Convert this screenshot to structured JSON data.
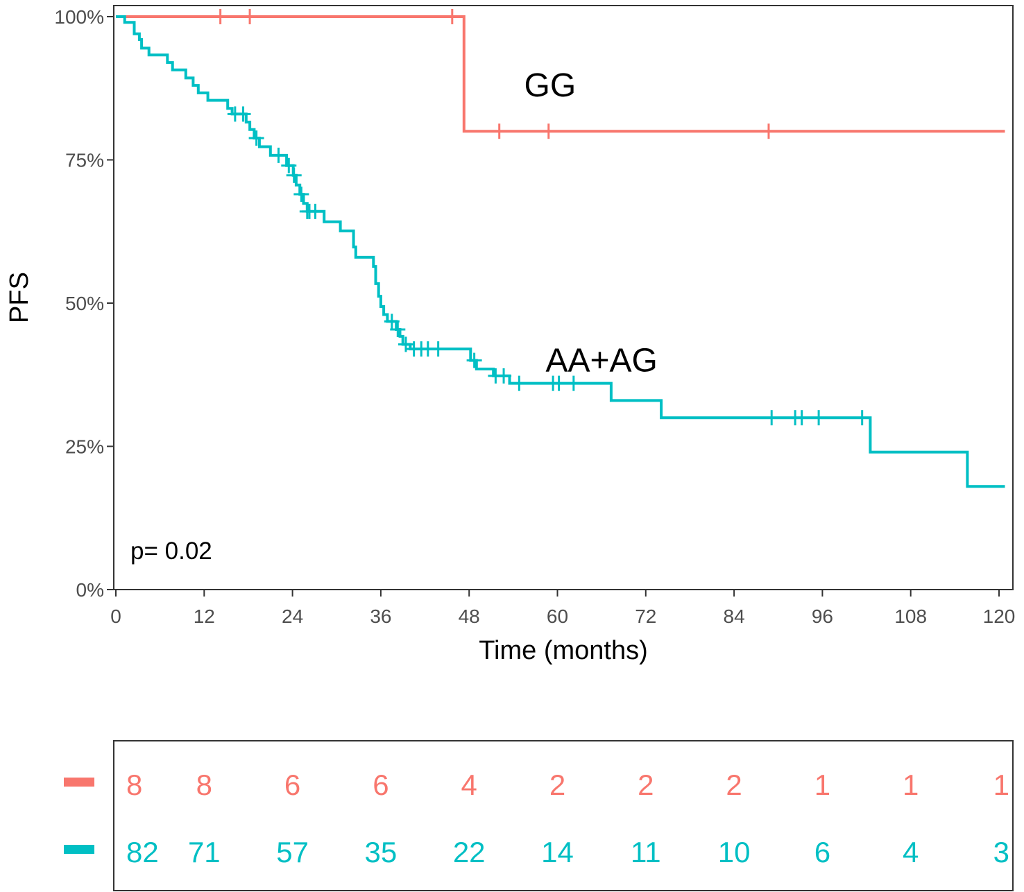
{
  "chart_data": {
    "type": "line",
    "subtype": "kaplan-meier",
    "title": "",
    "xlabel": "Time (months)",
    "ylabel": "PFS",
    "xlim": [
      0,
      120
    ],
    "ylim": [
      0,
      100
    ],
    "x_ticks": [
      0,
      12,
      24,
      36,
      48,
      60,
      72,
      84,
      96,
      108,
      120
    ],
    "y_ticks": [
      {
        "value": 0,
        "label": "0%"
      },
      {
        "value": 25,
        "label": "25%"
      },
      {
        "value": 50,
        "label": "50%"
      },
      {
        "value": 75,
        "label": "75%"
      },
      {
        "value": 100,
        "label": "100%"
      }
    ],
    "grid": false,
    "annotation": "p= 0.02",
    "series": [
      {
        "name": "GG",
        "color": "#F8766D",
        "label_at": {
          "x": 59,
          "y": 88
        },
        "steps": [
          [
            0,
            100
          ],
          [
            47.3,
            100
          ],
          [
            47.3,
            80
          ],
          [
            121,
            80
          ]
        ],
        "censor_times": [
          14.2,
          18.2,
          45.7,
          52.1,
          58.8,
          88.7
        ],
        "at_risk": [
          8,
          8,
          6,
          6,
          4,
          2,
          2,
          2,
          1,
          1,
          1
        ]
      },
      {
        "name": "AA+AG",
        "color": "#00BFC4",
        "label_at": {
          "x": 66,
          "y": 40
        },
        "steps": [
          [
            0,
            100
          ],
          [
            1.2,
            100
          ],
          [
            1.2,
            99
          ],
          [
            2.5,
            99
          ],
          [
            2.5,
            97
          ],
          [
            3.2,
            97
          ],
          [
            3.2,
            96
          ],
          [
            3.5,
            96
          ],
          [
            3.5,
            94.5
          ],
          [
            4.5,
            94.5
          ],
          [
            4.5,
            93.3
          ],
          [
            7,
            93.3
          ],
          [
            7,
            92
          ],
          [
            7.7,
            92
          ],
          [
            7.7,
            90.7
          ],
          [
            9.5,
            90.7
          ],
          [
            9.5,
            89.3
          ],
          [
            10.5,
            89.3
          ],
          [
            10.5,
            88
          ],
          [
            11.2,
            88
          ],
          [
            11.2,
            86.7
          ],
          [
            12.5,
            86.7
          ],
          [
            12.5,
            85.4
          ],
          [
            15.2,
            85.4
          ],
          [
            15.2,
            84
          ],
          [
            15.8,
            84
          ],
          [
            15.8,
            83
          ],
          [
            17.7,
            83
          ],
          [
            17.7,
            81.6
          ],
          [
            18.2,
            81.6
          ],
          [
            18.2,
            80.3
          ],
          [
            18.8,
            80.3
          ],
          [
            18.8,
            78.8
          ],
          [
            19.5,
            78.8
          ],
          [
            19.5,
            77.3
          ],
          [
            21,
            77.3
          ],
          [
            21,
            75.8
          ],
          [
            23.2,
            75.8
          ],
          [
            23.2,
            74
          ],
          [
            24.1,
            74
          ],
          [
            24.1,
            72.3
          ],
          [
            24.5,
            72.3
          ],
          [
            24.5,
            70.6
          ],
          [
            25,
            70.6
          ],
          [
            25,
            69
          ],
          [
            25.5,
            69
          ],
          [
            25.5,
            67.4
          ],
          [
            26,
            67.4
          ],
          [
            26,
            66
          ],
          [
            28.3,
            66
          ],
          [
            28.3,
            64.2
          ],
          [
            30.5,
            64.2
          ],
          [
            30.5,
            62.6
          ],
          [
            32.3,
            62.6
          ],
          [
            32.3,
            59.8
          ],
          [
            32.6,
            59.8
          ],
          [
            32.6,
            58
          ],
          [
            35,
            58
          ],
          [
            35,
            56.4
          ],
          [
            35.3,
            56.4
          ],
          [
            35.3,
            53.4
          ],
          [
            35.7,
            53.4
          ],
          [
            35.7,
            51.2
          ],
          [
            36,
            51.2
          ],
          [
            36,
            49.4
          ],
          [
            36.4,
            49.4
          ],
          [
            36.4,
            48
          ],
          [
            36.9,
            48
          ],
          [
            36.9,
            46.8
          ],
          [
            38.1,
            46.8
          ],
          [
            38.1,
            45.4
          ],
          [
            38.6,
            45.4
          ],
          [
            38.6,
            44.2
          ],
          [
            39,
            44.2
          ],
          [
            39,
            42.8
          ],
          [
            40,
            42.8
          ],
          [
            40,
            42
          ],
          [
            48.2,
            42
          ],
          [
            48.2,
            40
          ],
          [
            49,
            40
          ],
          [
            49,
            38.5
          ],
          [
            51.3,
            38.5
          ],
          [
            51.3,
            37.3
          ],
          [
            53.5,
            37.3
          ],
          [
            53.5,
            36
          ],
          [
            67.3,
            36
          ],
          [
            67.3,
            33
          ],
          [
            74.1,
            33
          ],
          [
            74.1,
            30
          ],
          [
            102.5,
            30
          ],
          [
            102.5,
            24
          ],
          [
            115.7,
            24
          ],
          [
            115.7,
            18
          ],
          [
            121,
            18
          ]
        ],
        "censor_times": [
          16.2,
          17.3,
          19.1,
          22.1,
          23.5,
          24.2,
          25.2,
          26,
          26.3,
          27.1,
          37.5,
          38.3,
          39.4,
          40.5,
          41.5,
          42.4,
          43.8,
          48.7,
          51.6,
          52.7,
          54.8,
          59.4,
          60.2,
          62.2,
          89.1,
          92.3,
          93.2,
          95.5,
          101.4
        ],
        "at_risk": [
          82,
          71,
          57,
          35,
          22,
          14,
          11,
          10,
          6,
          4,
          3
        ]
      }
    ]
  }
}
